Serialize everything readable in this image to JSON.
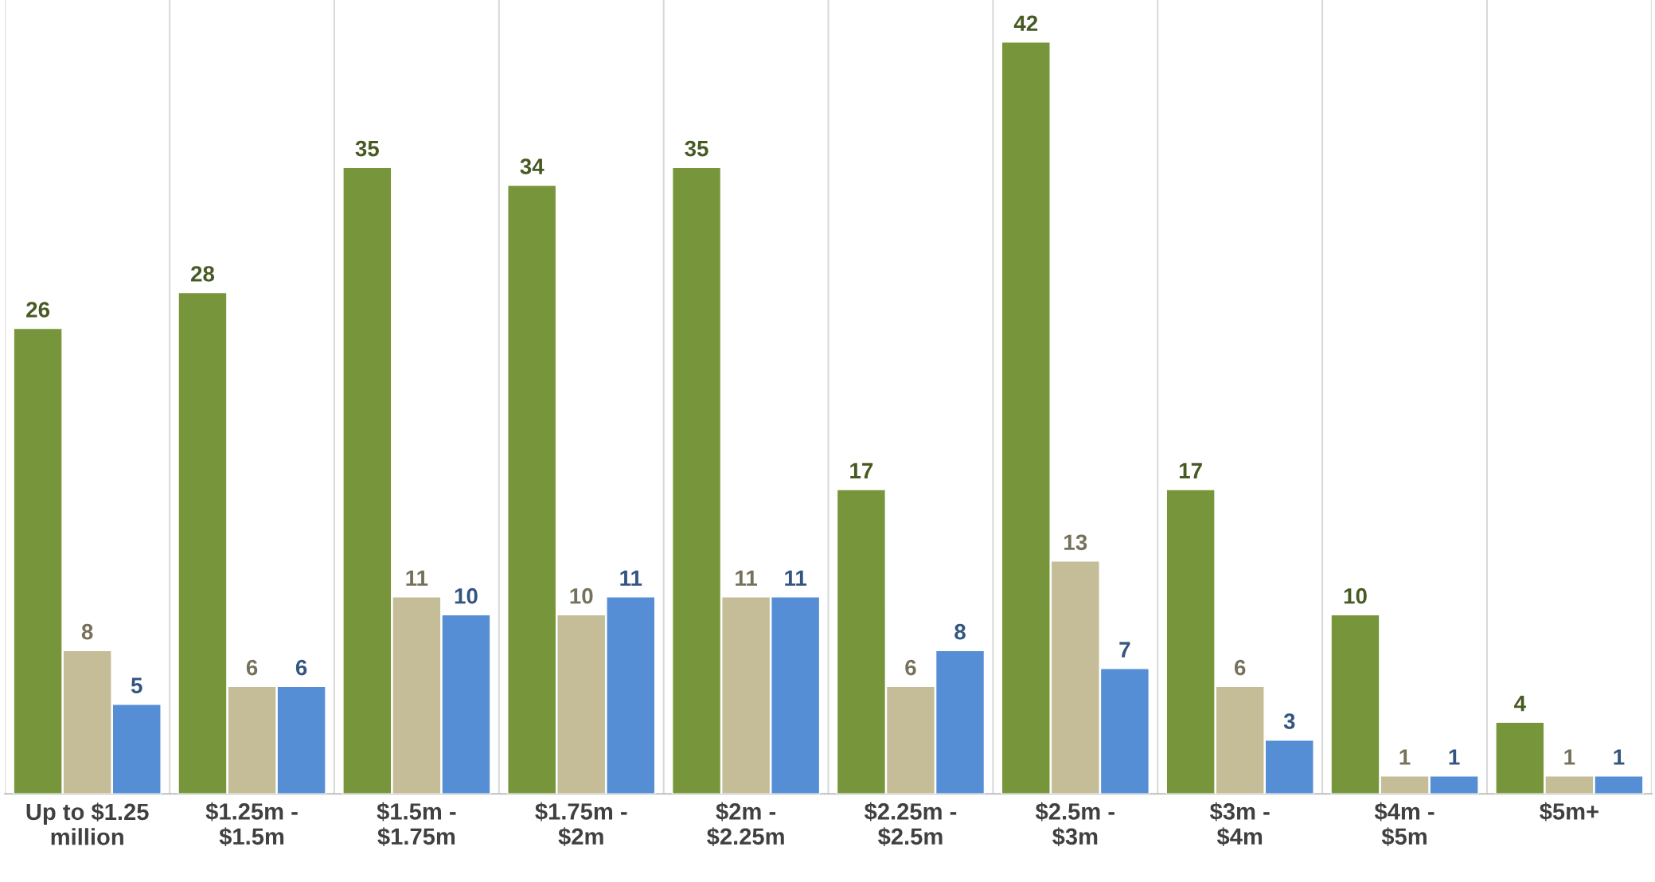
{
  "chart_data": {
    "type": "bar",
    "categories": [
      "Up to $1.25\nmillion",
      "$1.25m -\n$1.5m",
      "$1.5m -\n$1.75m",
      "$1.75m -\n$2m",
      "$2m -\n$2.25m",
      "$2.25m -\n$2.5m",
      "$2.5m -\n$3m",
      "$3m -\n$4m",
      "$4m -\n$5m",
      "$5m+"
    ],
    "series": [
      {
        "color": "#77963b",
        "values": [
          26,
          28,
          35,
          34,
          35,
          17,
          42,
          17,
          10,
          4
        ]
      },
      {
        "color": "#c4bd97",
        "values": [
          8,
          6,
          11,
          10,
          11,
          6,
          13,
          6,
          1,
          1
        ]
      },
      {
        "color": "#558ed5",
        "values": [
          5,
          6,
          10,
          11,
          11,
          8,
          7,
          3,
          1,
          1
        ]
      }
    ],
    "data_labels": true,
    "grid": "x",
    "legend": false
  }
}
